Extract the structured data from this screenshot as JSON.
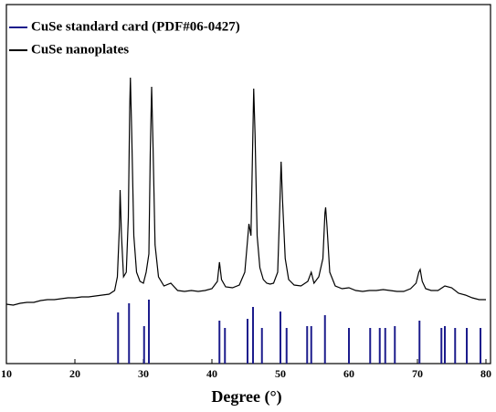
{
  "chart_data": {
    "type": "line",
    "xlabel": "Degree (°)",
    "xlim": [
      10,
      80
    ],
    "xticks": [
      10,
      20,
      30,
      40,
      50,
      60,
      70,
      80
    ],
    "ylim": [
      0,
      393
    ],
    "legend": "upper left",
    "series": [
      {
        "name": "CuSe standard card (PDF#06-0427)",
        "type": "stem",
        "color": "#1c1c8c",
        "x": [
          26.3,
          27.9,
          30.1,
          30.8,
          41.1,
          41.9,
          45.2,
          46.0,
          47.3,
          50.0,
          50.9,
          53.9,
          54.5,
          56.5,
          60.0,
          63.1,
          64.5,
          65.3,
          66.7,
          70.3,
          73.5,
          74.0,
          75.5,
          77.2,
          79.2
        ],
        "values": [
          56,
          66,
          41,
          70,
          47,
          39,
          49,
          62,
          39,
          57,
          39,
          41,
          41,
          53,
          39,
          39,
          39,
          39,
          41,
          47,
          39,
          41,
          39,
          39,
          39
        ]
      },
      {
        "name": "CuSe nanoplates",
        "type": "line",
        "color": "#000000",
        "x": [
          10,
          11,
          12,
          13,
          14,
          15,
          16,
          17,
          18,
          19,
          20,
          21,
          22,
          23,
          24,
          25,
          25.8,
          26.2,
          26.5,
          26.6,
          26.8,
          27.1,
          27.5,
          27.8,
          28.0,
          28.1,
          28.3,
          28.6,
          29.0,
          29.5,
          30.0,
          30.4,
          30.6,
          30.8,
          31.0,
          31.2,
          31.4,
          31.7,
          32.2,
          33,
          34,
          35,
          36,
          37,
          38,
          39,
          40,
          40.8,
          41.1,
          41.4,
          42,
          43,
          44,
          44.8,
          45.2,
          45.4,
          45.7,
          45.9,
          46.1,
          46.3,
          46.6,
          47,
          47.5,
          48,
          48.5,
          49,
          49.6,
          49.9,
          50.1,
          50.3,
          50.7,
          51.2,
          52,
          53,
          54,
          54.5,
          54.9,
          55.6,
          56.2,
          56.5,
          56.6,
          56.8,
          57.2,
          58,
          59,
          60,
          61,
          62,
          63,
          64,
          65,
          66,
          67,
          68,
          69,
          69.8,
          70.2,
          70.4,
          70.7,
          71.2,
          72,
          73,
          74,
          75,
          76,
          77,
          78,
          79,
          80
        ],
        "values": [
          65,
          64,
          66,
          67,
          67,
          69,
          70,
          70,
          71,
          72,
          72,
          73,
          73,
          74,
          75,
          76,
          80,
          95,
          150,
          190,
          140,
          95,
          100,
          160,
          280,
          313,
          250,
          140,
          100,
          90,
          88,
          100,
          110,
          120,
          230,
          303,
          240,
          130,
          95,
          85,
          88,
          80,
          79,
          80,
          79,
          80,
          82,
          90,
          111,
          92,
          84,
          83,
          86,
          100,
          135,
          153,
          140,
          220,
          301,
          250,
          140,
          105,
          92,
          88,
          87,
          88,
          100,
          170,
          221,
          180,
          115,
          92,
          86,
          85,
          90,
          100,
          88,
          95,
          115,
          165,
          171,
          150,
          100,
          85,
          82,
          83,
          80,
          79,
          80,
          80,
          81,
          80,
          79,
          79,
          82,
          88,
          100,
          103,
          90,
          82,
          80,
          80,
          85,
          83,
          77,
          75,
          72,
          70,
          70
        ]
      }
    ]
  }
}
